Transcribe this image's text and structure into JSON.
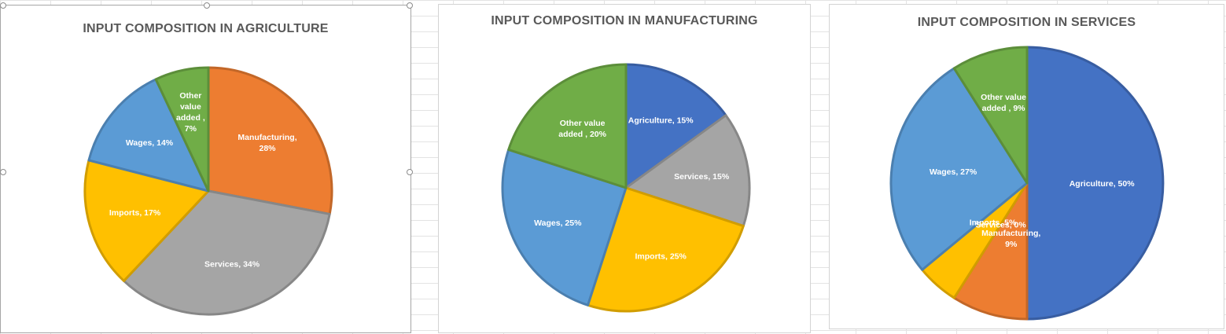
{
  "chart_data": [
    {
      "type": "pie",
      "title": "INPUT COMPOSITION IN AGRICULTURE",
      "slices": [
        {
          "label": "Manufacturing",
          "value": 28,
          "color": "#ED7D31"
        },
        {
          "label": "Services",
          "value": 34,
          "color": "#A5A5A5"
        },
        {
          "label": "Imports",
          "value": 17,
          "color": "#FFC000"
        },
        {
          "label": "Wages",
          "value": 14,
          "color": "#5B9BD5"
        },
        {
          "label": "Other value added",
          "value": 7,
          "color": "#70AD47"
        }
      ],
      "data_labels": [
        [
          "Manufacturing,",
          "28%"
        ],
        [
          "Services, 34%"
        ],
        [
          "Imports, 17%"
        ],
        [
          "Wages, 14%"
        ],
        [
          "Other",
          "value",
          "added ,",
          "7%"
        ]
      ]
    },
    {
      "type": "pie",
      "title": "INPUT COMPOSITION IN MANUFACTURING",
      "slices": [
        {
          "label": "Agriculture",
          "value": 15,
          "color": "#4472C4"
        },
        {
          "label": "Services",
          "value": 15,
          "color": "#A5A5A5"
        },
        {
          "label": "Imports",
          "value": 25,
          "color": "#FFC000"
        },
        {
          "label": "Wages",
          "value": 25,
          "color": "#5B9BD5"
        },
        {
          "label": "Other value added",
          "value": 20,
          "color": "#70AD47"
        }
      ],
      "data_labels": [
        [
          "Agriculture, 15%"
        ],
        [
          "Services, 15%"
        ],
        [
          "Imports, 25%"
        ],
        [
          "Wages, 25%"
        ],
        [
          "Other value",
          "added , 20%"
        ]
      ]
    },
    {
      "type": "pie",
      "title": "INPUT COMPOSITION IN SERVICES",
      "slices": [
        {
          "label": "Agriculture",
          "value": 50,
          "color": "#4472C4"
        },
        {
          "label": "Manufacturing",
          "value": 9,
          "color": "#ED7D31"
        },
        {
          "label": "Services",
          "value": 0,
          "color": "#A5A5A5"
        },
        {
          "label": "Imports",
          "value": 5,
          "color": "#FFC000"
        },
        {
          "label": "Wages",
          "value": 27,
          "color": "#5B9BD5"
        },
        {
          "label": "Other value added",
          "value": 9,
          "color": "#70AD47"
        }
      ],
      "data_labels": [
        [
          "Agriculture, 50%"
        ],
        [
          "Manufacturing,",
          "9%"
        ],
        [
          "Services, 0%"
        ],
        [
          "Imports, 5%"
        ],
        [
          "Wages, 27%"
        ],
        [
          "Other value",
          "added , 9%"
        ]
      ]
    }
  ]
}
